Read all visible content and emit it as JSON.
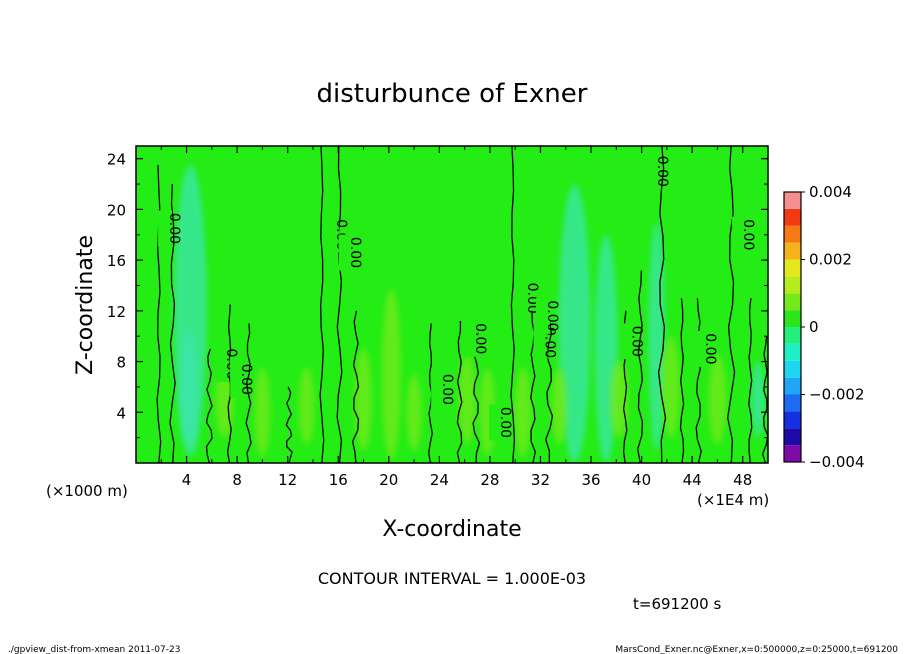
{
  "chart_data": {
    "type": "heatmap",
    "title": "disturbunce of Exner",
    "xlabel": "X-coordinate",
    "ylabel": "Z-coordinate",
    "x_unit_left": "(×1000 m)",
    "x_unit_right": "(×1E4 m)",
    "xlim": [
      0,
      50
    ],
    "ylim": [
      0,
      25
    ],
    "x_ticks": [
      "4",
      "8",
      "12",
      "16",
      "20",
      "24",
      "28",
      "32",
      "36",
      "40",
      "44",
      "48"
    ],
    "y_ticks": [
      "4",
      "8",
      "12",
      "16",
      "20",
      "24"
    ],
    "colorbar": {
      "range": [
        -0.004,
        0.004
      ],
      "tick_labels": [
        "0.004",
        "0.002",
        "0",
        "−0.002",
        "−0.004"
      ],
      "levels": [
        {
          "from": -0.004,
          "to": -0.0035,
          "color": "#7e0aa8"
        },
        {
          "from": -0.0035,
          "to": -0.003,
          "color": "#1c0aa8"
        },
        {
          "from": -0.003,
          "to": -0.0025,
          "color": "#1530e0"
        },
        {
          "from": -0.0025,
          "to": -0.002,
          "color": "#1d6cf2"
        },
        {
          "from": -0.002,
          "to": -0.0015,
          "color": "#1fa6f5"
        },
        {
          "from": -0.0015,
          "to": -0.001,
          "color": "#1fd6f0"
        },
        {
          "from": -0.001,
          "to": -0.0005,
          "color": "#1ef0c4"
        },
        {
          "from": -0.0005,
          "to": 0,
          "color": "#22ef7d"
        },
        {
          "from": 0,
          "to": 0.0005,
          "color": "#2ee51c"
        },
        {
          "from": 0.0005,
          "to": 0.001,
          "color": "#75ea1b"
        },
        {
          "from": 0.001,
          "to": 0.0015,
          "color": "#b6ec1a"
        },
        {
          "from": 0.0015,
          "to": 0.002,
          "color": "#e6e61c"
        },
        {
          "from": 0.002,
          "to": 0.0025,
          "color": "#f5b21c"
        },
        {
          "from": 0.0025,
          "to": 0.003,
          "color": "#f57a16"
        },
        {
          "from": 0.003,
          "to": 0.0035,
          "color": "#f23a12"
        },
        {
          "from": 0.0035,
          "to": 0.004,
          "color": "#f59090"
        }
      ]
    },
    "contour_label": "0.00",
    "contour_labels": [
      {
        "x": 2.3,
        "y": 18.5
      },
      {
        "x": 15.5,
        "y": 18.0
      },
      {
        "x": 16.6,
        "y": 16.6
      },
      {
        "x": 30.6,
        "y": 13.0
      },
      {
        "x": 32.0,
        "y": 9.5
      },
      {
        "x": 32.2,
        "y": 11.6
      },
      {
        "x": 40.9,
        "y": 23.0
      },
      {
        "x": 47.7,
        "y": 18.0
      },
      {
        "x": 6.8,
        "y": 7.8
      },
      {
        "x": 8.0,
        "y": 6.6
      },
      {
        "x": 26.5,
        "y": 9.8
      },
      {
        "x": 23.9,
        "y": 5.8
      },
      {
        "x": 28.5,
        "y": 3.2
      },
      {
        "x": 38.9,
        "y": 9.6
      },
      {
        "x": 44.7,
        "y": 9.0
      }
    ],
    "zero_contours": [
      {
        "x": 1.8,
        "top": 23.5
      },
      {
        "x": 2.9,
        "top": 22
      },
      {
        "x": 5.8,
        "top": 9
      },
      {
        "x": 7.4,
        "top": 12.5
      },
      {
        "x": 8.9,
        "top": 11
      },
      {
        "x": 12.1,
        "top": 6
      },
      {
        "x": 14.7,
        "top": 25
      },
      {
        "x": 16.1,
        "top": 25
      },
      {
        "x": 17.4,
        "top": 12
      },
      {
        "x": 23.3,
        "top": 11
      },
      {
        "x": 25.6,
        "top": 11.2
      },
      {
        "x": 26.9,
        "top": 11
      },
      {
        "x": 29.8,
        "top": 25
      },
      {
        "x": 31.4,
        "top": 12
      },
      {
        "x": 32.7,
        "top": 13
      },
      {
        "x": 38.7,
        "top": 12
      },
      {
        "x": 39.9,
        "top": 15.2
      },
      {
        "x": 41.6,
        "top": 25
      },
      {
        "x": 43.2,
        "top": 13
      },
      {
        "x": 44.5,
        "top": 13
      },
      {
        "x": 47.1,
        "top": 25
      },
      {
        "x": 48.6,
        "top": 13
      },
      {
        "x": 49.8,
        "top": 10
      }
    ],
    "positive_blobs": [
      {
        "x": 7,
        "y": 5,
        "w": 1.4,
        "h": 6
      },
      {
        "x": 10,
        "y": 4,
        "w": 1.2,
        "h": 7
      },
      {
        "x": 13.5,
        "y": 4.5,
        "w": 1.2,
        "h": 6
      },
      {
        "x": 18,
        "y": 5,
        "w": 1.3,
        "h": 8
      },
      {
        "x": 20.2,
        "y": 7,
        "w": 1.5,
        "h": 13.5
      },
      {
        "x": 22,
        "y": 4,
        "w": 1.2,
        "h": 6
      },
      {
        "x": 26.2,
        "y": 5,
        "w": 1.3,
        "h": 7
      },
      {
        "x": 27.8,
        "y": 4,
        "w": 1.2,
        "h": 7
      },
      {
        "x": 30.6,
        "y": 4,
        "w": 1.3,
        "h": 7
      },
      {
        "x": 33.5,
        "y": 4.5,
        "w": 1.2,
        "h": 6
      },
      {
        "x": 38.2,
        "y": 5,
        "w": 1.4,
        "h": 6
      },
      {
        "x": 42.3,
        "y": 6,
        "w": 1.4,
        "h": 8
      },
      {
        "x": 46,
        "y": 5,
        "w": 1.4,
        "h": 7
      }
    ],
    "negative_blobs": [
      {
        "x": 4.3,
        "y": 12,
        "w": 2.6,
        "h": 23
      },
      {
        "x": 4.2,
        "y": 6,
        "w": 1.3,
        "h": 9
      },
      {
        "x": 34.7,
        "y": 11,
        "w": 2.5,
        "h": 22
      },
      {
        "x": 37.2,
        "y": 9,
        "w": 1.8,
        "h": 18
      },
      {
        "x": 41.2,
        "y": 10,
        "w": 1.3,
        "h": 18
      },
      {
        "x": 49.2,
        "y": 5,
        "w": 1,
        "h": 6
      }
    ]
  },
  "contour_interval_text": "CONTOUR INTERVAL = 1.000E-03",
  "time_text": "t=691200 s",
  "footer_left": "./gpview_dist-from-xmean  2011-07-23",
  "footer_right": "MarsCond_Exner.nc@Exner,x=0:500000,z=0:25000,t=691200"
}
